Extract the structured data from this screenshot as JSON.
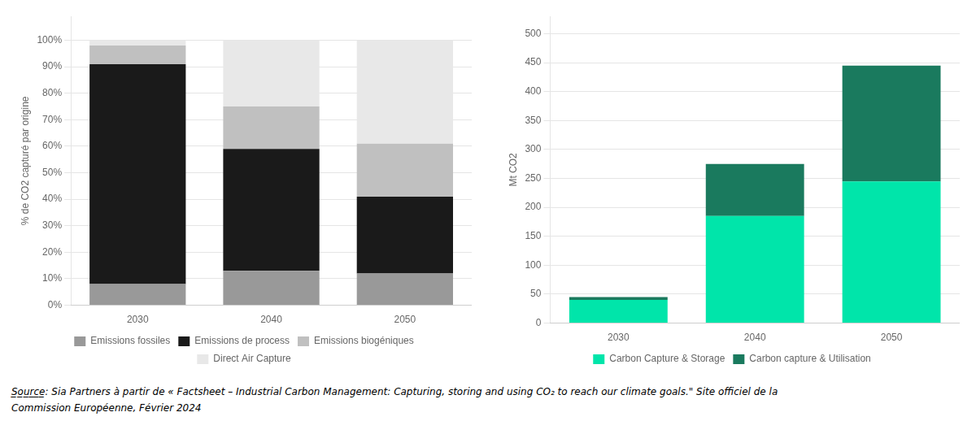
{
  "chart_data": [
    {
      "type": "bar",
      "stacked": true,
      "categories": [
        "2030",
        "2040",
        "2050"
      ],
      "ylabel": "% de CO2 capturé par origine",
      "series": [
        {
          "name": "Emissions fossiles",
          "color": "#999999",
          "values": [
            0.08,
            0.13,
            0.12
          ]
        },
        {
          "name": "Emissions de process",
          "color": "#1a1a1a",
          "values": [
            0.83,
            0.46,
            0.29
          ]
        },
        {
          "name": "Emissions biogéniques",
          "color": "#c0c0c0",
          "values": [
            0.07,
            0.16,
            0.2
          ]
        },
        {
          "name": "Direct Air Capture",
          "color": "#e8e8e8",
          "values": [
            0.02,
            0.25,
            0.39
          ]
        }
      ],
      "ylim": [
        0,
        1.09
      ],
      "yticks": [
        {
          "value": 0,
          "label": "0%"
        },
        {
          "value": 0.1,
          "label": "10%"
        },
        {
          "value": 0.2,
          "label": "20%"
        },
        {
          "value": 0.3,
          "label": "30%"
        },
        {
          "value": 0.4,
          "label": "40%"
        },
        {
          "value": 0.5,
          "label": "50%"
        },
        {
          "value": 0.6,
          "label": "60%"
        },
        {
          "value": 0.7,
          "label": "70%"
        },
        {
          "value": 0.8,
          "label": "80%"
        },
        {
          "value": 0.9,
          "label": "90%"
        },
        {
          "value": 1.0,
          "label": "100%"
        }
      ],
      "grid": true,
      "legend": "bottom",
      "annotations": [
        "S̲o̲u̲r̲c̲e̲: Sia Partners à partir de « Factsheet – Industrial Carbon Management: Capturing, storing and using CO₂ to reach our climate goals.\" Site officiel de la",
        "Commission Européenne, Février 2024"
      ]
    },
    {
      "type": "bar",
      "stacked": true,
      "categories": [
        "2030",
        "2040",
        "2050"
      ],
      "ylabel": "Mt CO2",
      "series": [
        {
          "name": "Carbon Capture & Storage",
          "color": "#00e5aa",
          "values": [
            40,
            185,
            245
          ]
        },
        {
          "name": "Carbon capture & Utilisation",
          "color": "#1a7a5e",
          "values": [
            5,
            90,
            200
          ]
        }
      ],
      "ylim": [
        0,
        530
      ],
      "yticks": [
        0,
        50,
        100,
        150,
        200,
        250,
        300,
        350,
        400,
        450,
        500
      ],
      "grid": true,
      "legend": "bottom"
    }
  ]
}
